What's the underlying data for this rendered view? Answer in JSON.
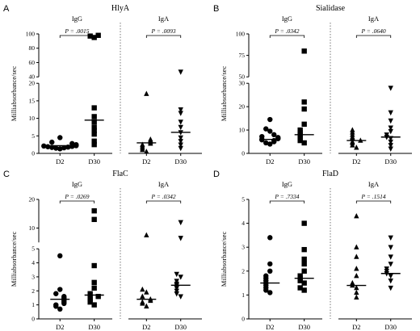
{
  "figure": {
    "ylabel": "Milliabsorbance/sec",
    "group_labels": [
      "IgG",
      "IgA"
    ],
    "x_categories": [
      "D2",
      "D30",
      "D2",
      "D30"
    ]
  },
  "chart_data": [
    {
      "panel": "A",
      "title": "HlyA",
      "type": "scatter",
      "segments": [
        {
          "range": [
            0,
            20
          ],
          "ticks": [
            0,
            5,
            10,
            15,
            20
          ]
        },
        {
          "range": [
            40,
            100
          ],
          "ticks": [
            40,
            60,
            80,
            100
          ]
        }
      ],
      "pvalues": [
        {
          "group": "IgG",
          "text": "P = .0015"
        },
        {
          "group": "IgA",
          "text": "P = .0093"
        }
      ],
      "series": [
        {
          "name": "IgG D2",
          "marker": "circle",
          "median": 2.2,
          "values": [
            1.3,
            1.5,
            1.6,
            1.7,
            1.8,
            1.9,
            2.0,
            2.1,
            2.2,
            2.3,
            2.5,
            2.8,
            3.2,
            4.5
          ]
        },
        {
          "name": "IgG D30",
          "marker": "square",
          "median": 9.5,
          "values": [
            2.5,
            3.5,
            5.5,
            6.5,
            7.5,
            9.0,
            10.5,
            13.0,
            95,
            97,
            98
          ]
        },
        {
          "name": "IgA D2",
          "marker": "triangle-up",
          "median": 3.0,
          "values": [
            0.5,
            1.0,
            1.5,
            2.0,
            2.5,
            2.8,
            3.2,
            3.6,
            4.0,
            17.0
          ]
        },
        {
          "name": "IgA D30",
          "marker": "triangle-down",
          "median": 6.0,
          "values": [
            1.5,
            2.5,
            3.5,
            4.5,
            6.0,
            7.5,
            9.0,
            11.5,
            12.5,
            47
          ]
        }
      ]
    },
    {
      "panel": "B",
      "title": "Sialidase",
      "type": "scatter",
      "segments": [
        {
          "range": [
            0,
            30
          ],
          "ticks": [
            0,
            10,
            20,
            30
          ]
        },
        {
          "range": [
            50,
            100
          ],
          "ticks": [
            50,
            75,
            100
          ]
        }
      ],
      "pvalues": [
        {
          "group": "IgG",
          "text": "P = .0342"
        },
        {
          "group": "IgA",
          "text": "P = .0640"
        }
      ],
      "series": [
        {
          "name": "IgG D2",
          "marker": "circle",
          "median": 6.0,
          "values": [
            4.0,
            4.5,
            5.0,
            5.5,
            5.8,
            6.0,
            6.3,
            6.8,
            7.2,
            8.0,
            9.5,
            10.5,
            14.5
          ]
        },
        {
          "name": "IgG D30",
          "marker": "square",
          "median": 8.0,
          "values": [
            4.5,
            5.5,
            6.5,
            7.5,
            8.0,
            9.0,
            10.0,
            12.5,
            19.0,
            22.0,
            80
          ]
        },
        {
          "name": "IgA D2",
          "marker": "triangle-up",
          "median": 5.5,
          "values": [
            2.5,
            3.5,
            4.5,
            5.0,
            5.5,
            6.5,
            7.0,
            8.0,
            9.0,
            10.0
          ]
        },
        {
          "name": "IgA D30",
          "marker": "triangle-down",
          "median": 7.0,
          "values": [
            2.0,
            3.5,
            5.0,
            6.5,
            7.0,
            8.0,
            9.5,
            11.0,
            14.0,
            17.5,
            28.0
          ]
        }
      ]
    },
    {
      "panel": "C",
      "title": "FlaC",
      "type": "scatter",
      "segments": [
        {
          "range": [
            0,
            5
          ],
          "ticks": [
            0,
            1,
            2,
            3,
            4,
            5
          ]
        },
        {
          "range": [
            5,
            20
          ],
          "ticks": [
            10,
            20
          ]
        }
      ],
      "pvalues": [
        {
          "group": "IgG",
          "text": "P = .0269"
        },
        {
          "group": "IgA",
          "text": "P = .0342"
        }
      ],
      "series": [
        {
          "name": "IgG D2",
          "marker": "circle",
          "median": 1.4,
          "values": [
            0.7,
            0.9,
            1.0,
            1.1,
            1.2,
            1.3,
            1.4,
            1.5,
            1.6,
            1.8,
            2.1,
            4.5
          ]
        },
        {
          "name": "IgG D30",
          "marker": "square",
          "median": 1.7,
          "values": [
            1.0,
            1.2,
            1.4,
            1.5,
            1.6,
            1.8,
            2.2,
            2.6,
            3.8,
            13,
            16
          ]
        },
        {
          "name": "IgA D2",
          "marker": "triangle-up",
          "median": 1.4,
          "values": [
            0.9,
            1.1,
            1.2,
            1.3,
            1.4,
            1.6,
            1.9,
            2.1,
            7.5
          ]
        },
        {
          "name": "IgA D30",
          "marker": "triangle-down",
          "median": 2.4,
          "values": [
            1.6,
            1.8,
            2.0,
            2.2,
            2.4,
            2.5,
            2.7,
            3.0,
            3.2,
            6.5,
            12
          ]
        }
      ]
    },
    {
      "panel": "D",
      "title": "FlaD",
      "type": "scatter",
      "segments": [
        {
          "range": [
            0,
            5
          ],
          "ticks": [
            0,
            1,
            2,
            3,
            4,
            5
          ]
        }
      ],
      "pvalues": [
        {
          "group": "IgG",
          "text": "P = .7334"
        },
        {
          "group": "IgA",
          "text": "P = .1514"
        }
      ],
      "series": [
        {
          "name": "IgG D2",
          "marker": "circle",
          "median": 1.5,
          "values": [
            1.1,
            1.2,
            1.3,
            1.4,
            1.5,
            1.6,
            1.7,
            1.8,
            2.0,
            2.3,
            3.4
          ]
        },
        {
          "name": "IgG D30",
          "marker": "square",
          "median": 1.7,
          "values": [
            1.2,
            1.3,
            1.5,
            1.6,
            1.7,
            1.8,
            2.0,
            2.3,
            2.5,
            2.9,
            4.0
          ]
        },
        {
          "name": "IgA D2",
          "marker": "triangle-up",
          "median": 1.4,
          "values": [
            0.9,
            1.1,
            1.3,
            1.4,
            1.5,
            1.8,
            2.1,
            2.6,
            3.0,
            4.3
          ]
        },
        {
          "name": "IgA D30",
          "marker": "triangle-down",
          "median": 1.9,
          "values": [
            1.3,
            1.6,
            1.8,
            1.9,
            2.0,
            2.1,
            2.3,
            2.6,
            3.0,
            3.4
          ]
        }
      ]
    }
  ]
}
